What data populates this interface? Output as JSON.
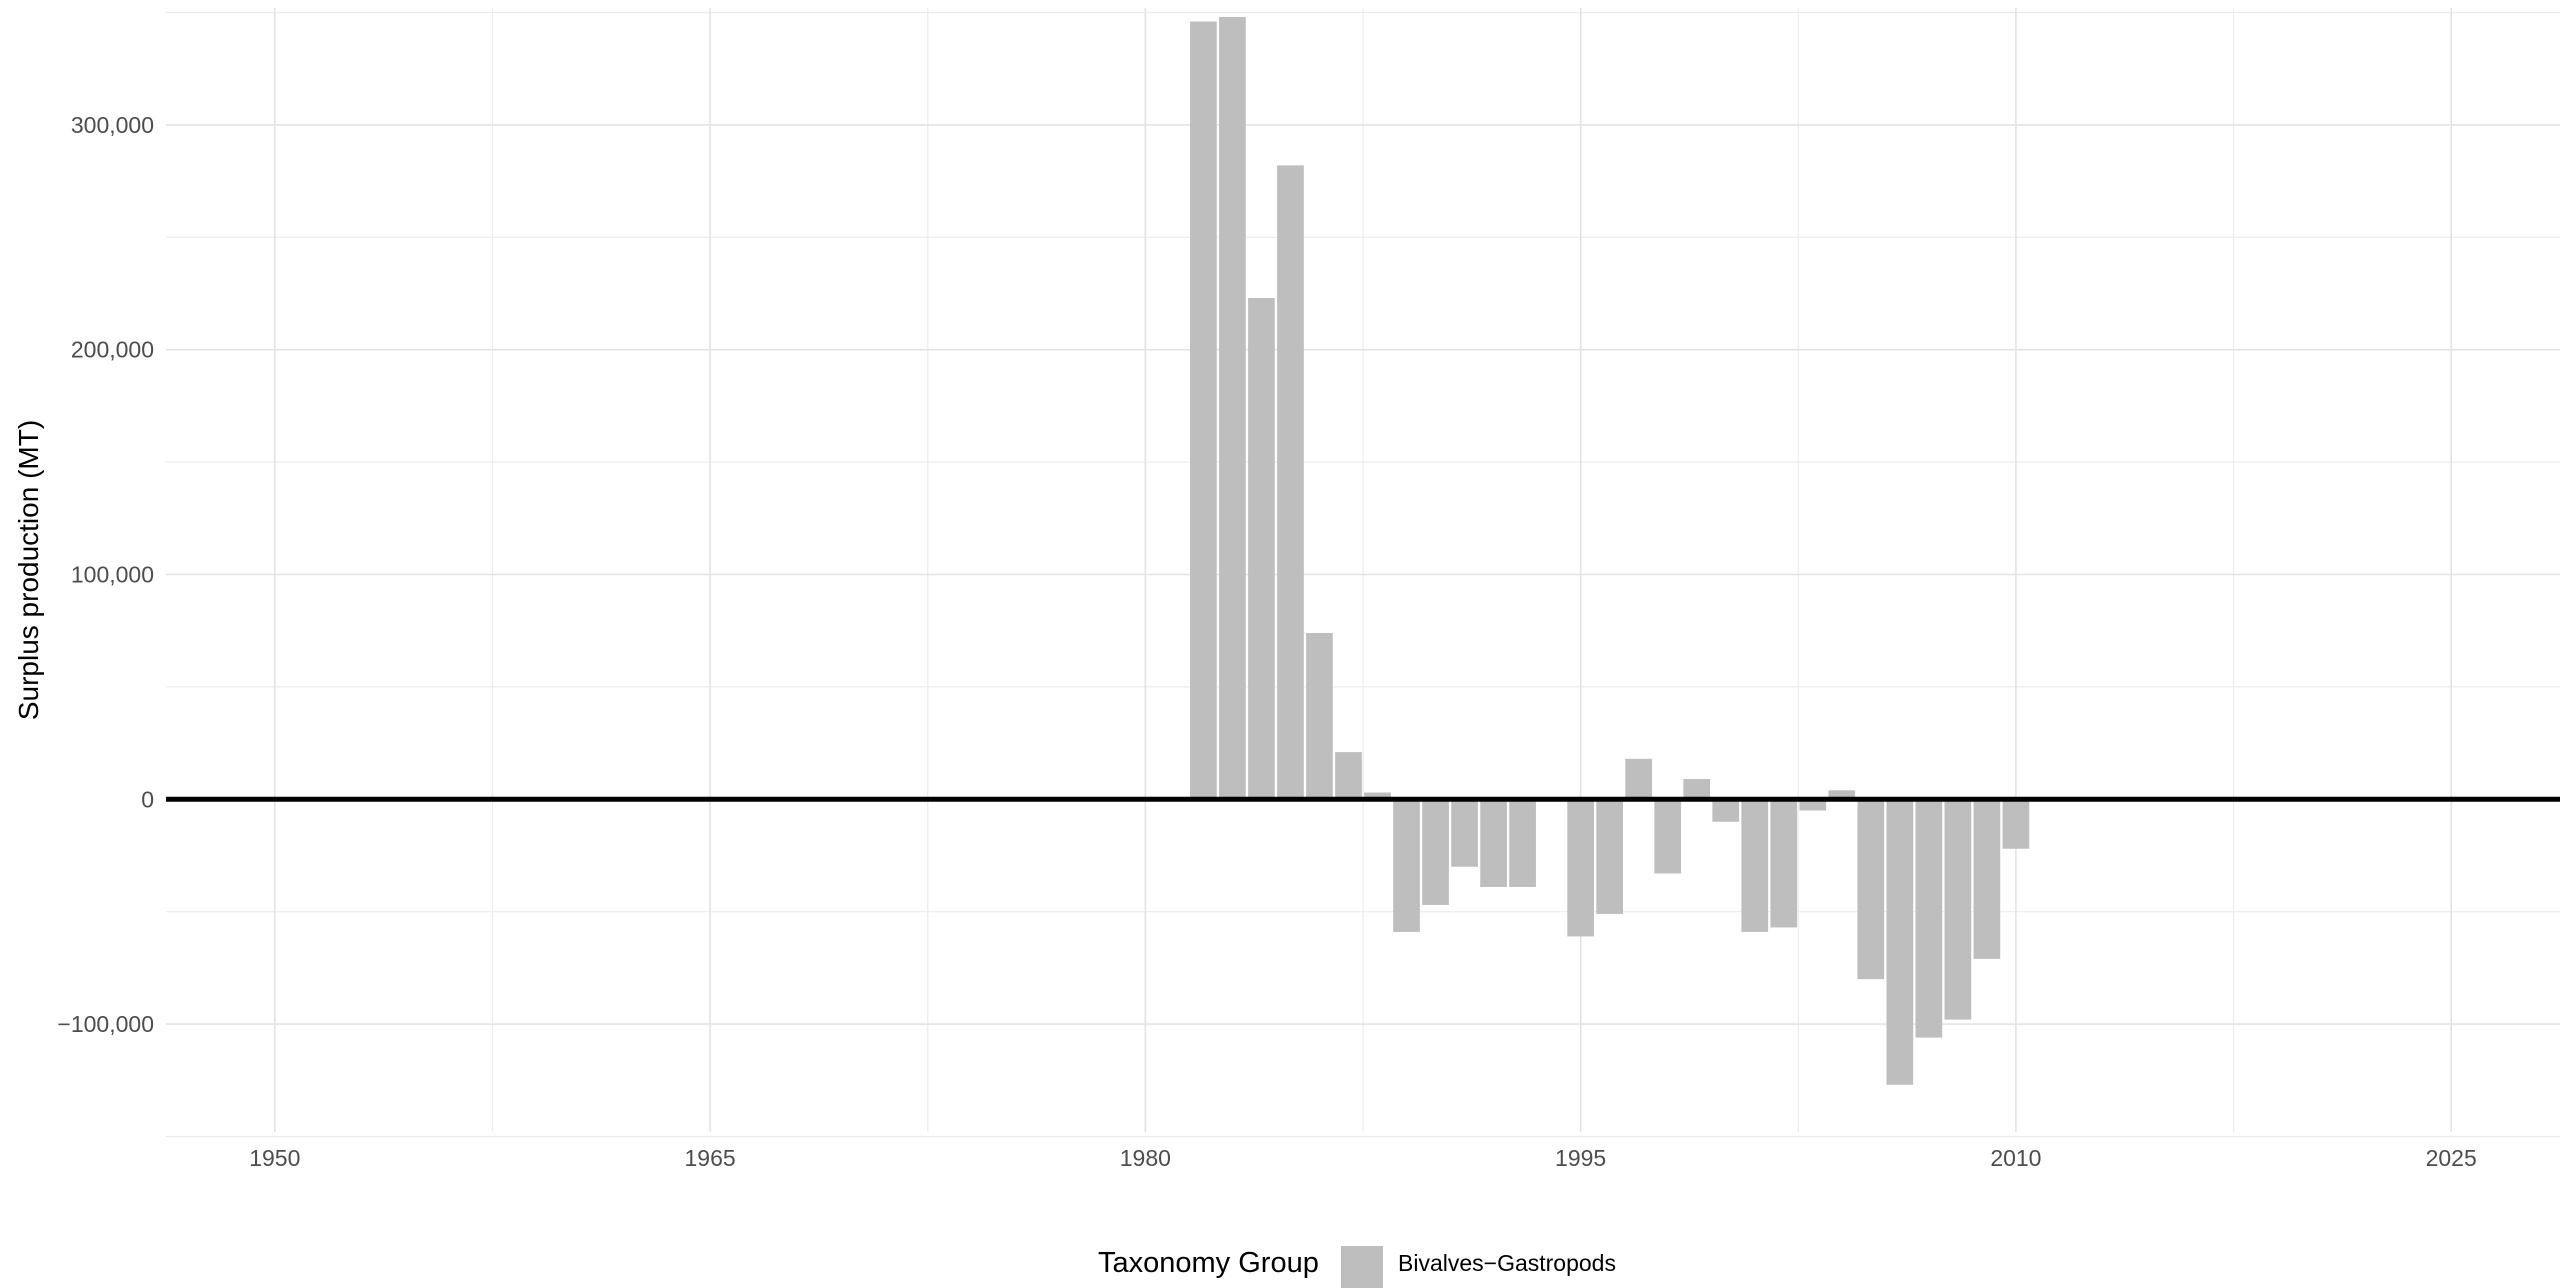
{
  "chart_data": {
    "type": "bar",
    "title": "",
    "xlabel": "",
    "ylabel": "Surplus production (MT)",
    "xlim": [
      1946.25,
      2028.75
    ],
    "ylim": [
      -148000,
      352000
    ],
    "x_ticks": [
      1950,
      1965,
      1980,
      1995,
      2010,
      2025
    ],
    "x_minor_ticks": [
      1957.5,
      1972.5,
      1987.5,
      2002.5,
      2017.5
    ],
    "y_ticks": [
      -100000,
      0,
      100000,
      200000,
      300000
    ],
    "y_tick_labels": [
      "−100,000",
      "0",
      "100,000",
      "200,000",
      "300,000"
    ],
    "y_minor_ticks": [
      -150000,
      -50000,
      50000,
      150000,
      250000,
      350000
    ],
    "grid": true,
    "zero_line": true,
    "legend": {
      "title": "Taxonomy Group",
      "position": "bottom",
      "entries": [
        "Bivalves−Gastropods"
      ]
    },
    "series": [
      {
        "name": "Bivalves−Gastropods",
        "color": "#bebebe",
        "x": [
          1982,
          1983,
          1984,
          1985,
          1986,
          1987,
          1988,
          1989,
          1990,
          1991,
          1992,
          1993,
          1994,
          1995,
          1996,
          1997,
          1998,
          1999,
          2000,
          2001,
          2002,
          2003,
          2004,
          2005,
          2006,
          2007,
          2008,
          2009,
          2010
        ],
        "values": [
          346000,
          348000,
          223000,
          282000,
          74000,
          21000,
          3000,
          -59000,
          -47000,
          -30000,
          -39000,
          -39000,
          1000,
          -61000,
          -51000,
          18000,
          -33000,
          9000,
          -10000,
          -59000,
          -57000,
          -5000,
          4000,
          -80000,
          -127000,
          -106000,
          -98000,
          -71000,
          -22000
        ]
      }
    ]
  }
}
